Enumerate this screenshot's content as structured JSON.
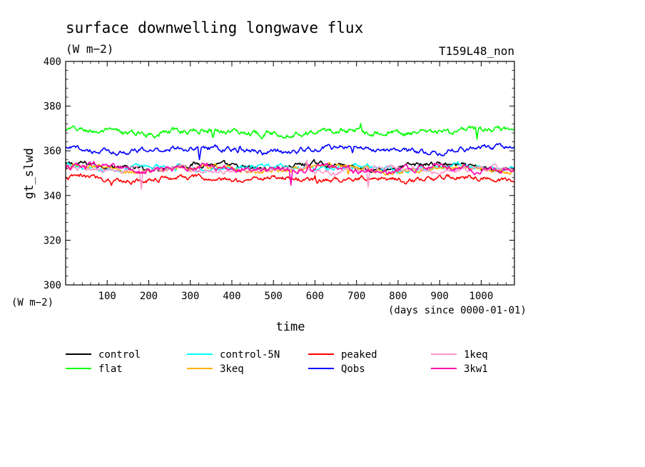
{
  "chart_data": {
    "type": "line",
    "title": "surface downwelling longwave flux",
    "title_units": "(W m−2)",
    "run_label": "T159L48_non",
    "xlabel": "time",
    "x_units": "(days since 0000-01-01)",
    "ylabel": "gt_slwd",
    "y_units": "(W m−2)",
    "xlim": [
      0,
      1080
    ],
    "ylim": [
      300,
      400
    ],
    "x_ticks": [
      100,
      200,
      300,
      400,
      500,
      600,
      700,
      800,
      900,
      1000
    ],
    "y_ticks": [
      300,
      320,
      340,
      360,
      380,
      400
    ],
    "legend_position": "bottom",
    "series": [
      {
        "name": "control",
        "color": "#000000",
        "mean": 353,
        "noise": 0.7,
        "waves": [
          [
            1.2,
            1.3,
            0.6
          ]
        ],
        "spikes": []
      },
      {
        "name": "flat",
        "color": "#00ff00",
        "mean": 368.5,
        "noise": 0.8,
        "waves": [
          [
            0.8,
            1.1,
            1.4
          ]
        ],
        "spikes": [
          [
            355,
            -2.5
          ],
          [
            710,
            2.5
          ],
          [
            990,
            -6
          ]
        ]
      },
      {
        "name": "control-5N",
        "color": "#00ffff",
        "mean": 352.5,
        "noise": 0.7,
        "waves": [
          [
            1.0,
            1.5,
            2.2
          ]
        ],
        "spikes": [
          [
            265,
            -3
          ],
          [
            690,
            -2
          ]
        ]
      },
      {
        "name": "3keq",
        "color": "#ffb000",
        "mean": 352,
        "noise": 0.7,
        "waves": [
          [
            1.0,
            1.2,
            0.9
          ]
        ],
        "spikes": [
          [
            680,
            -4
          ]
        ]
      },
      {
        "name": "peaked",
        "color": "#ff0000",
        "mean": 347.5,
        "noise": 0.7,
        "waves": [
          [
            0.8,
            1.6,
            0.3
          ]
        ],
        "spikes": [
          [
            110,
            -2
          ],
          [
            600,
            2
          ]
        ]
      },
      {
        "name": "Qobs",
        "color": "#0000ff",
        "mean": 360.5,
        "noise": 0.7,
        "waves": [
          [
            1.0,
            1.0,
            2.5
          ]
        ],
        "spikes": [
          [
            322,
            -6
          ],
          [
            420,
            2
          ],
          [
            690,
            -2
          ]
        ]
      },
      {
        "name": "1keq",
        "color": "#ff99cc",
        "mean": 351.5,
        "noise": 0.7,
        "waves": [
          [
            0.9,
            1.4,
            1.7
          ]
        ],
        "spikes": [
          [
            182,
            -9
          ],
          [
            580,
            4
          ],
          [
            728,
            -9
          ]
        ]
      },
      {
        "name": "3kw1",
        "color": "#ff00aa",
        "mean": 352,
        "noise": 0.8,
        "waves": [
          [
            1.0,
            1.3,
            0.4
          ]
        ],
        "spikes": [
          [
            542,
            -8
          ],
          [
            585,
            3
          ]
        ]
      }
    ]
  }
}
